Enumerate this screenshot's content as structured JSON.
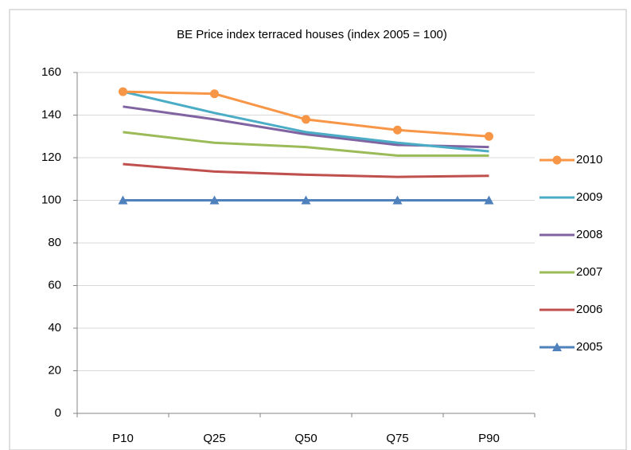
{
  "chart_data": {
    "type": "line",
    "title": "BE Price index terraced houses (index 2005 = 100)",
    "categories": [
      "P10",
      "Q25",
      "Q50",
      "Q75",
      "P90"
    ],
    "series": [
      {
        "name": "2010",
        "color": "#f79646",
        "marker": "circle",
        "values": [
          151,
          150,
          138,
          133,
          130
        ]
      },
      {
        "name": "2009",
        "color": "#4bacc6",
        "values": [
          151,
          141,
          132,
          127,
          123
        ]
      },
      {
        "name": "2008",
        "color": "#8064a2",
        "values": [
          144,
          138,
          131,
          126,
          125
        ]
      },
      {
        "name": "2007",
        "color": "#9bbb59",
        "values": [
          132,
          127,
          125,
          121,
          121
        ]
      },
      {
        "name": "2006",
        "color": "#c0504d",
        "values": [
          117,
          113.5,
          112,
          111,
          111.5
        ]
      },
      {
        "name": "2005",
        "color": "#4f81bd",
        "marker": "triangle",
        "values": [
          100,
          100,
          100,
          100,
          100
        ]
      }
    ],
    "ylim": [
      0,
      160
    ],
    "yticks": [
      0,
      20,
      40,
      60,
      80,
      100,
      120,
      140,
      160
    ],
    "grid": true,
    "legend": "right"
  }
}
